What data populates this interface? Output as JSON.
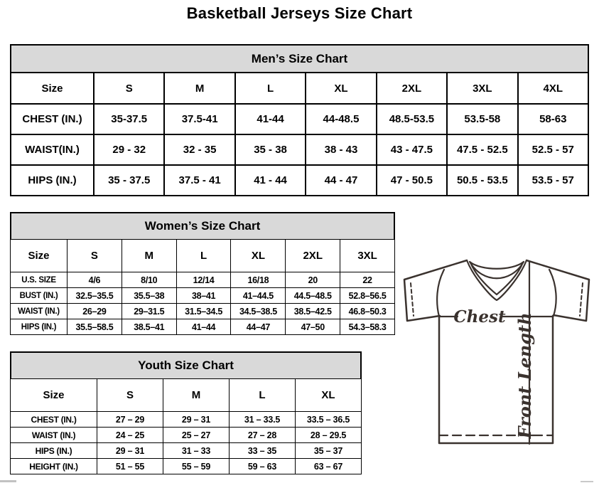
{
  "page": {
    "title": "Basketball Jerseys Size Chart"
  },
  "tables": {
    "mens": {
      "title": "Men’s Size Chart",
      "corner": "Size",
      "sizes": [
        "S",
        "M",
        "L",
        "XL",
        "2XL",
        "3XL",
        "4XL"
      ],
      "rows": [
        {
          "label": "CHEST (IN.)",
          "values": [
            "35-37.5",
            "37.5-41",
            "41-44",
            "44-48.5",
            "48.5-53.5",
            "53.5-58",
            "58-63"
          ]
        },
        {
          "label": "WAIST(IN.)",
          "values": [
            "29 - 32",
            "32 - 35",
            "35 - 38",
            "38 - 43",
            "43 - 47.5",
            "47.5 - 52.5",
            "52.5 - 57"
          ]
        },
        {
          "label": "HIPS (IN.)",
          "values": [
            "35 - 37.5",
            "37.5 - 41",
            "41 - 44",
            "44 - 47",
            "47 - 50.5",
            "50.5 - 53.5",
            "53.5 - 57"
          ]
        }
      ]
    },
    "womens": {
      "title": "Women’s Size Chart",
      "corner": "Size",
      "sizes": [
        "S",
        "M",
        "L",
        "XL",
        "2XL",
        "3XL"
      ],
      "rows": [
        {
          "label": "U.S. SIZE",
          "values": [
            "4/6",
            "8/10",
            "12/14",
            "16/18",
            "20",
            "22"
          ]
        },
        {
          "label": "BUST (IN.)",
          "values": [
            "32.5–35.5",
            "35.5–38",
            "38–41",
            "41–44.5",
            "44.5–48.5",
            "52.8–56.5"
          ]
        },
        {
          "label": "WAIST (IN.)",
          "values": [
            "26–29",
            "29–31.5",
            "31.5–34.5",
            "34.5–38.5",
            "38.5–42.5",
            "46.8–50.3"
          ]
        },
        {
          "label": "HIPS (IN.)",
          "values": [
            "35.5–58.5",
            "38.5–41",
            "41–44",
            "44–47",
            "47–50",
            "54.3–58.3"
          ]
        }
      ]
    },
    "youth": {
      "title": "Youth Size Chart",
      "corner": "Size",
      "sizes": [
        "S",
        "M",
        "L",
        "XL"
      ],
      "rows": [
        {
          "label": "CHEST (IN.)",
          "values": [
            "27 – 29",
            "29 – 31",
            "31 – 33.5",
            "33.5 – 36.5"
          ]
        },
        {
          "label": "WAIST (IN.)",
          "values": [
            "24 – 25",
            "25 – 27",
            "27 – 28",
            "28 – 29.5"
          ]
        },
        {
          "label": "HIPS (IN.)",
          "values": [
            "29 – 31",
            "31 – 33",
            "33 – 35",
            "35 – 37"
          ]
        },
        {
          "label": "HEIGHT (IN.)",
          "values": [
            "51 – 55",
            "55 – 59",
            "59 – 63",
            "63 – 67"
          ]
        }
      ]
    }
  },
  "diagram": {
    "chest_label": "Chest",
    "front_length_label": "Front Length"
  },
  "colors": {
    "header_band_bg": "#d9d9d9",
    "table_border": "#000000",
    "diagram_line": "#3a322e"
  }
}
